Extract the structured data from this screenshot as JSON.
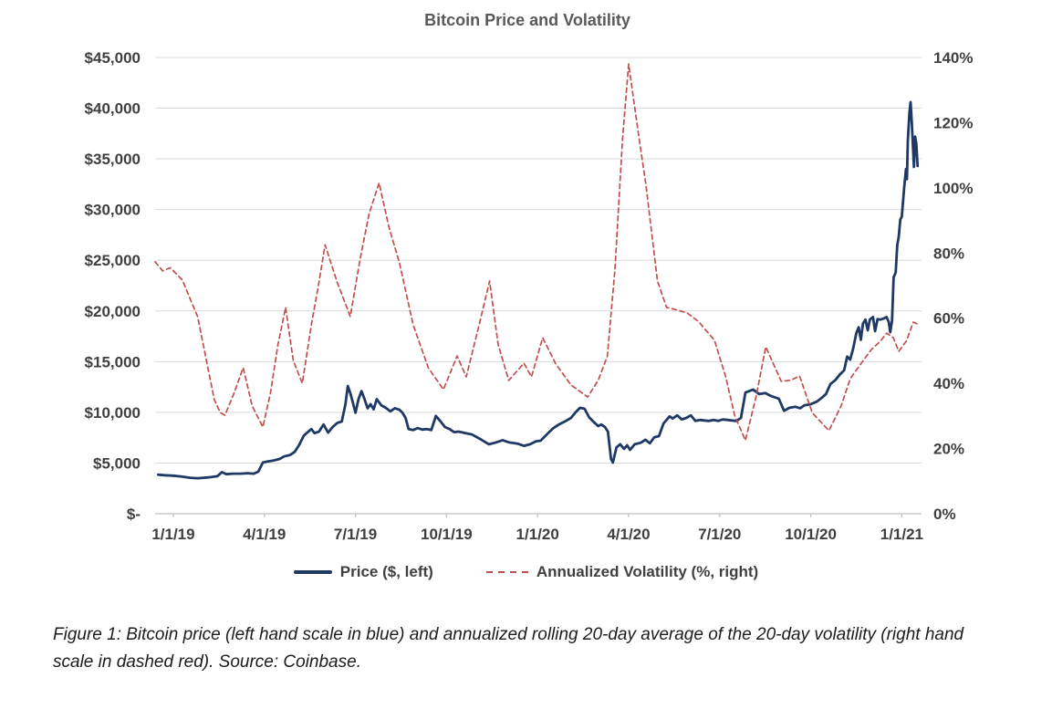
{
  "title": "Bitcoin Price and Volatility",
  "caption": "Figure 1: Bitcoin price (left hand scale in blue) and annualized rolling 20-day average of the 20-day volatility (right hand scale in dashed red). Source: Coinbase.",
  "legend": [
    {
      "label": "Price ($, left)",
      "style": "solid",
      "color": "#1f3864"
    },
    {
      "label": "Annualized Volatility (%, right)",
      "style": "dashed",
      "color": "#c0504d"
    }
  ],
  "colors": {
    "price_line": "#1f3864",
    "volatility_line": "#c0504d",
    "gridline": "#d9d9d9",
    "axis_text": "#3f3f3f",
    "title_text": "#595959"
  },
  "chart_data": {
    "type": "line",
    "title": "Bitcoin Price and Volatility",
    "grid": "horizontal",
    "legend_position": "bottom",
    "x_axis": {
      "tick_labels": [
        "1/1/19",
        "4/1/19",
        "7/1/19",
        "10/1/19",
        "1/1/20",
        "4/1/20",
        "7/1/20",
        "10/1/20",
        "1/1/21"
      ],
      "tick_months": [
        0,
        3,
        6,
        9,
        12,
        15,
        18,
        21,
        24
      ],
      "range_months": [
        -0.6,
        24.65
      ],
      "unit": "months since 1/1/19"
    },
    "left_axis": {
      "title": "Price ($)",
      "tick_labels": [
        "$45,000",
        "$40,000",
        "$35,000",
        "$30,000",
        "$25,000",
        "$20,000",
        "$15,000",
        "$10,000",
        "$5,000",
        "$-"
      ],
      "tick_values": [
        45000,
        40000,
        35000,
        30000,
        25000,
        20000,
        15000,
        10000,
        5000,
        0
      ],
      "range": [
        0,
        45000
      ]
    },
    "right_axis": {
      "title": "Annualized Volatility (%)",
      "tick_labels": [
        "140%",
        "120%",
        "100%",
        "80%",
        "60%",
        "40%",
        "20%",
        "0%"
      ],
      "tick_values": [
        140,
        120,
        100,
        80,
        60,
        40,
        20,
        0
      ],
      "range": [
        0,
        140
      ]
    },
    "series": [
      {
        "name": "Price ($, left)",
        "axis": "left",
        "color": "#1f3864",
        "width": 2.8,
        "dash": null,
        "points": [
          [
            -0.5,
            3850
          ],
          [
            -0.3,
            3800
          ],
          [
            0,
            3750
          ],
          [
            0.3,
            3650
          ],
          [
            0.55,
            3550
          ],
          [
            0.8,
            3500
          ],
          [
            1.0,
            3550
          ],
          [
            1.2,
            3600
          ],
          [
            1.45,
            3700
          ],
          [
            1.6,
            4100
          ],
          [
            1.75,
            3900
          ],
          [
            1.95,
            3950
          ],
          [
            2.2,
            3950
          ],
          [
            2.45,
            4000
          ],
          [
            2.65,
            3950
          ],
          [
            2.8,
            4150
          ],
          [
            2.95,
            5050
          ],
          [
            3.1,
            5150
          ],
          [
            3.3,
            5250
          ],
          [
            3.5,
            5400
          ],
          [
            3.65,
            5650
          ],
          [
            3.85,
            5800
          ],
          [
            4.0,
            6100
          ],
          [
            4.15,
            6800
          ],
          [
            4.3,
            7700
          ],
          [
            4.45,
            8100
          ],
          [
            4.55,
            8350
          ],
          [
            4.65,
            7950
          ],
          [
            4.8,
            8100
          ],
          [
            4.95,
            8800
          ],
          [
            5.1,
            8000
          ],
          [
            5.25,
            8550
          ],
          [
            5.4,
            8950
          ],
          [
            5.55,
            9100
          ],
          [
            5.67,
            10800
          ],
          [
            5.75,
            12600
          ],
          [
            5.83,
            11900
          ],
          [
            5.9,
            11150
          ],
          [
            6.0,
            9950
          ],
          [
            6.1,
            11300
          ],
          [
            6.2,
            12100
          ],
          [
            6.3,
            11300
          ],
          [
            6.4,
            10400
          ],
          [
            6.5,
            10800
          ],
          [
            6.6,
            10300
          ],
          [
            6.7,
            11300
          ],
          [
            6.85,
            10700
          ],
          [
            7.0,
            10450
          ],
          [
            7.15,
            10100
          ],
          [
            7.3,
            10400
          ],
          [
            7.45,
            10250
          ],
          [
            7.55,
            9950
          ],
          [
            7.65,
            9450
          ],
          [
            7.75,
            8350
          ],
          [
            7.9,
            8250
          ],
          [
            8.05,
            8450
          ],
          [
            8.2,
            8300
          ],
          [
            8.35,
            8350
          ],
          [
            8.5,
            8250
          ],
          [
            8.65,
            9650
          ],
          [
            8.78,
            9200
          ],
          [
            8.95,
            8550
          ],
          [
            9.1,
            8350
          ],
          [
            9.25,
            8050
          ],
          [
            9.4,
            8100
          ],
          [
            9.55,
            8000
          ],
          [
            9.85,
            7800
          ],
          [
            10.15,
            7300
          ],
          [
            10.4,
            6850
          ],
          [
            10.6,
            7000
          ],
          [
            10.85,
            7250
          ],
          [
            11.05,
            7050
          ],
          [
            11.35,
            6900
          ],
          [
            11.55,
            6700
          ],
          [
            11.75,
            6850
          ],
          [
            11.95,
            7150
          ],
          [
            12.1,
            7200
          ],
          [
            12.3,
            7800
          ],
          [
            12.5,
            8400
          ],
          [
            12.7,
            8800
          ],
          [
            12.9,
            9100
          ],
          [
            13.1,
            9450
          ],
          [
            13.25,
            10000
          ],
          [
            13.4,
            10450
          ],
          [
            13.55,
            10350
          ],
          [
            13.7,
            9500
          ],
          [
            13.85,
            9050
          ],
          [
            14.0,
            8650
          ],
          [
            14.1,
            8800
          ],
          [
            14.22,
            8550
          ],
          [
            14.32,
            8100
          ],
          [
            14.42,
            5400
          ],
          [
            14.48,
            5050
          ],
          [
            14.6,
            6550
          ],
          [
            14.72,
            6850
          ],
          [
            14.85,
            6400
          ],
          [
            14.95,
            6750
          ],
          [
            15.05,
            6300
          ],
          [
            15.2,
            6850
          ],
          [
            15.4,
            7000
          ],
          [
            15.55,
            7300
          ],
          [
            15.7,
            6950
          ],
          [
            15.85,
            7550
          ],
          [
            16.0,
            7650
          ],
          [
            16.15,
            8900
          ],
          [
            16.35,
            9600
          ],
          [
            16.45,
            9400
          ],
          [
            16.6,
            9700
          ],
          [
            16.75,
            9300
          ],
          [
            16.9,
            9450
          ],
          [
            17.05,
            9700
          ],
          [
            17.2,
            9150
          ],
          [
            17.35,
            9250
          ],
          [
            17.5,
            9200
          ],
          [
            17.65,
            9150
          ],
          [
            17.8,
            9250
          ],
          [
            17.95,
            9150
          ],
          [
            18.1,
            9300
          ],
          [
            18.25,
            9250
          ],
          [
            18.4,
            9200
          ],
          [
            18.55,
            9150
          ],
          [
            18.7,
            9450
          ],
          [
            18.85,
            11950
          ],
          [
            19.1,
            12250
          ],
          [
            19.3,
            11800
          ],
          [
            19.5,
            11900
          ],
          [
            19.7,
            11600
          ],
          [
            19.95,
            11350
          ],
          [
            20.12,
            10150
          ],
          [
            20.3,
            10450
          ],
          [
            20.5,
            10550
          ],
          [
            20.65,
            10400
          ],
          [
            20.8,
            10700
          ],
          [
            21.0,
            10800
          ],
          [
            21.2,
            11050
          ],
          [
            21.35,
            11400
          ],
          [
            21.5,
            11800
          ],
          [
            21.65,
            12800
          ],
          [
            21.8,
            13150
          ],
          [
            21.95,
            13700
          ],
          [
            22.1,
            14150
          ],
          [
            22.2,
            15500
          ],
          [
            22.3,
            15200
          ],
          [
            22.4,
            16300
          ],
          [
            22.5,
            17800
          ],
          [
            22.58,
            18400
          ],
          [
            22.65,
            17150
          ],
          [
            22.72,
            18750
          ],
          [
            22.8,
            19150
          ],
          [
            22.88,
            18100
          ],
          [
            22.95,
            19150
          ],
          [
            23.05,
            19400
          ],
          [
            23.12,
            18000
          ],
          [
            23.2,
            19200
          ],
          [
            23.3,
            19150
          ],
          [
            23.4,
            19250
          ],
          [
            23.5,
            19400
          ],
          [
            23.57,
            18900
          ],
          [
            23.62,
            17900
          ],
          [
            23.68,
            19050
          ],
          [
            23.73,
            23300
          ],
          [
            23.8,
            23800
          ],
          [
            23.85,
            26500
          ],
          [
            23.9,
            27300
          ],
          [
            23.95,
            29000
          ],
          [
            24.0,
            29300
          ],
          [
            24.08,
            32200
          ],
          [
            24.14,
            34000
          ],
          [
            24.17,
            33000
          ],
          [
            24.2,
            36800
          ],
          [
            24.25,
            39500
          ],
          [
            24.29,
            40600
          ],
          [
            24.33,
            38500
          ],
          [
            24.37,
            36000
          ],
          [
            24.4,
            34200
          ],
          [
            24.44,
            37200
          ],
          [
            24.48,
            36500
          ],
          [
            24.52,
            34300
          ]
        ]
      },
      {
        "name": "Annualized Volatility (%, right)",
        "axis": "right",
        "color": "#c0504d",
        "width": 1.7,
        "dash": "5 3.8",
        "points": [
          [
            -0.6,
            77.3
          ],
          [
            -0.35,
            74.5
          ],
          [
            -0.1,
            75.5
          ],
          [
            0.3,
            71.7
          ],
          [
            0.55,
            66
          ],
          [
            0.8,
            60.5
          ],
          [
            1.1,
            46.5
          ],
          [
            1.35,
            35
          ],
          [
            1.55,
            31
          ],
          [
            1.7,
            30.2
          ],
          [
            2.0,
            37
          ],
          [
            2.3,
            44.8
          ],
          [
            2.6,
            33
          ],
          [
            2.95,
            26.6
          ],
          [
            3.2,
            37
          ],
          [
            3.45,
            52
          ],
          [
            3.7,
            63.3
          ],
          [
            3.95,
            47
          ],
          [
            4.25,
            40
          ],
          [
            4.55,
            58
          ],
          [
            4.8,
            71
          ],
          [
            5.0,
            82.5
          ],
          [
            5.4,
            71
          ],
          [
            5.83,
            60.5
          ],
          [
            6.15,
            78
          ],
          [
            6.45,
            92
          ],
          [
            6.78,
            101.5
          ],
          [
            7.1,
            88
          ],
          [
            7.45,
            77
          ],
          [
            7.9,
            58
          ],
          [
            8.4,
            44.8
          ],
          [
            8.9,
            38.1
          ],
          [
            9.35,
            48.4
          ],
          [
            9.65,
            42
          ],
          [
            10.05,
            57
          ],
          [
            10.42,
            71.4
          ],
          [
            10.7,
            52
          ],
          [
            11.05,
            40.9
          ],
          [
            11.55,
            46.2
          ],
          [
            11.8,
            42
          ],
          [
            12.17,
            54
          ],
          [
            12.6,
            46
          ],
          [
            13.1,
            39.5
          ],
          [
            13.65,
            35.8
          ],
          [
            14.0,
            41
          ],
          [
            14.3,
            48.4
          ],
          [
            14.55,
            75
          ],
          [
            14.8,
            115
          ],
          [
            15.0,
            138
          ],
          [
            15.3,
            118
          ],
          [
            15.57,
            101
          ],
          [
            15.95,
            71.4
          ],
          [
            16.25,
            63.3
          ],
          [
            16.6,
            62.5
          ],
          [
            16.93,
            61.6
          ],
          [
            17.3,
            59
          ],
          [
            17.83,
            53.2
          ],
          [
            18.2,
            42
          ],
          [
            18.5,
            30
          ],
          [
            18.85,
            22.5
          ],
          [
            19.2,
            36
          ],
          [
            19.52,
            51.2
          ],
          [
            20.03,
            40.6
          ],
          [
            20.35,
            41
          ],
          [
            20.63,
            42.3
          ],
          [
            21.05,
            31
          ],
          [
            21.45,
            27
          ],
          [
            21.6,
            25.5
          ],
          [
            22.0,
            33
          ],
          [
            22.3,
            41.4
          ],
          [
            22.65,
            46
          ],
          [
            23.0,
            50.4
          ],
          [
            23.3,
            53
          ],
          [
            23.5,
            55.4
          ],
          [
            23.72,
            54
          ],
          [
            23.9,
            49.8
          ],
          [
            24.15,
            53
          ],
          [
            24.38,
            58.8
          ],
          [
            24.52,
            58.2
          ]
        ]
      }
    ]
  }
}
